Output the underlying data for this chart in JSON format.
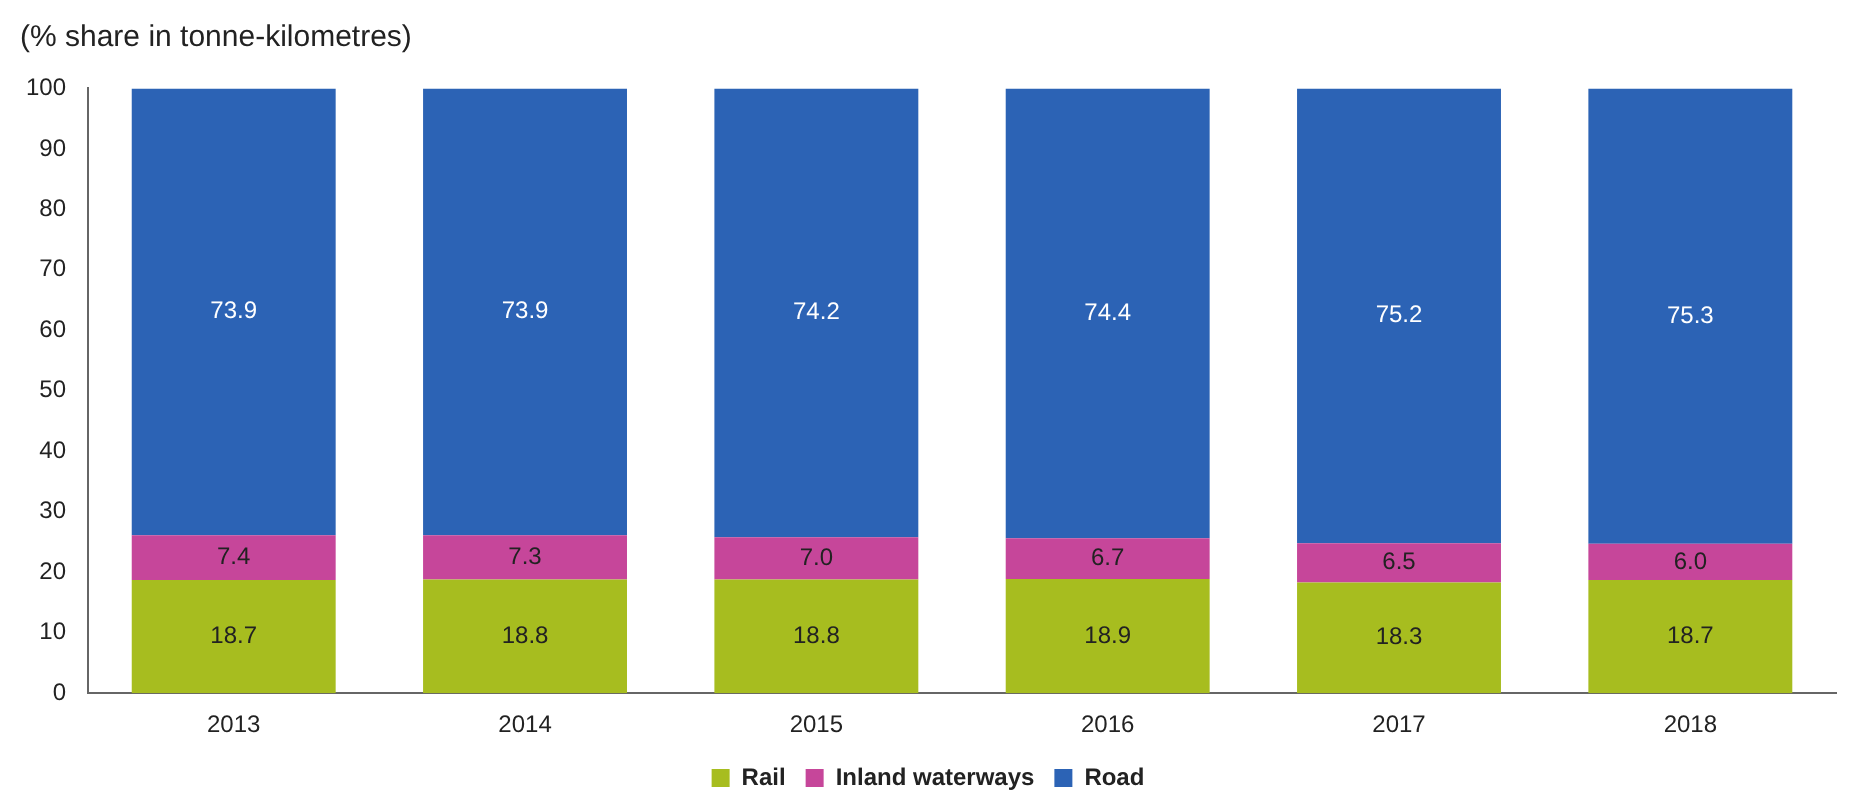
{
  "chart_data": {
    "type": "bar",
    "ylabel": "(% share in tonne-kilometres)",
    "categories": [
      "2013",
      "2014",
      "2015",
      "2016",
      "2017",
      "2018"
    ],
    "series": [
      {
        "name": "Rail",
        "color": "#a7bd1f",
        "values": [
          18.7,
          18.8,
          18.8,
          18.9,
          18.3,
          18.7
        ],
        "value_labels": [
          "18.7",
          "18.8",
          "18.8",
          "18.9",
          "18.3",
          "18.7"
        ]
      },
      {
        "name": "Inland waterways",
        "color": "#c6469a",
        "values": [
          7.4,
          7.3,
          7.0,
          6.7,
          6.5,
          6.0
        ],
        "value_labels": [
          "7.4",
          "7.3",
          "7.0",
          "6.7",
          "6.5",
          "6.0"
        ]
      },
      {
        "name": "Road",
        "color": "#2c63b5",
        "values": [
          73.9,
          73.9,
          74.2,
          74.4,
          75.2,
          75.3
        ],
        "value_labels": [
          "73.9",
          "73.9",
          "74.2",
          "74.4",
          "75.2",
          "75.3"
        ]
      }
    ],
    "stacked": true,
    "ylim": [
      0,
      100
    ],
    "yticks": [
      0,
      10,
      20,
      30,
      40,
      50,
      60,
      70,
      80,
      90,
      100
    ],
    "grid": false,
    "legend": "bottom"
  }
}
